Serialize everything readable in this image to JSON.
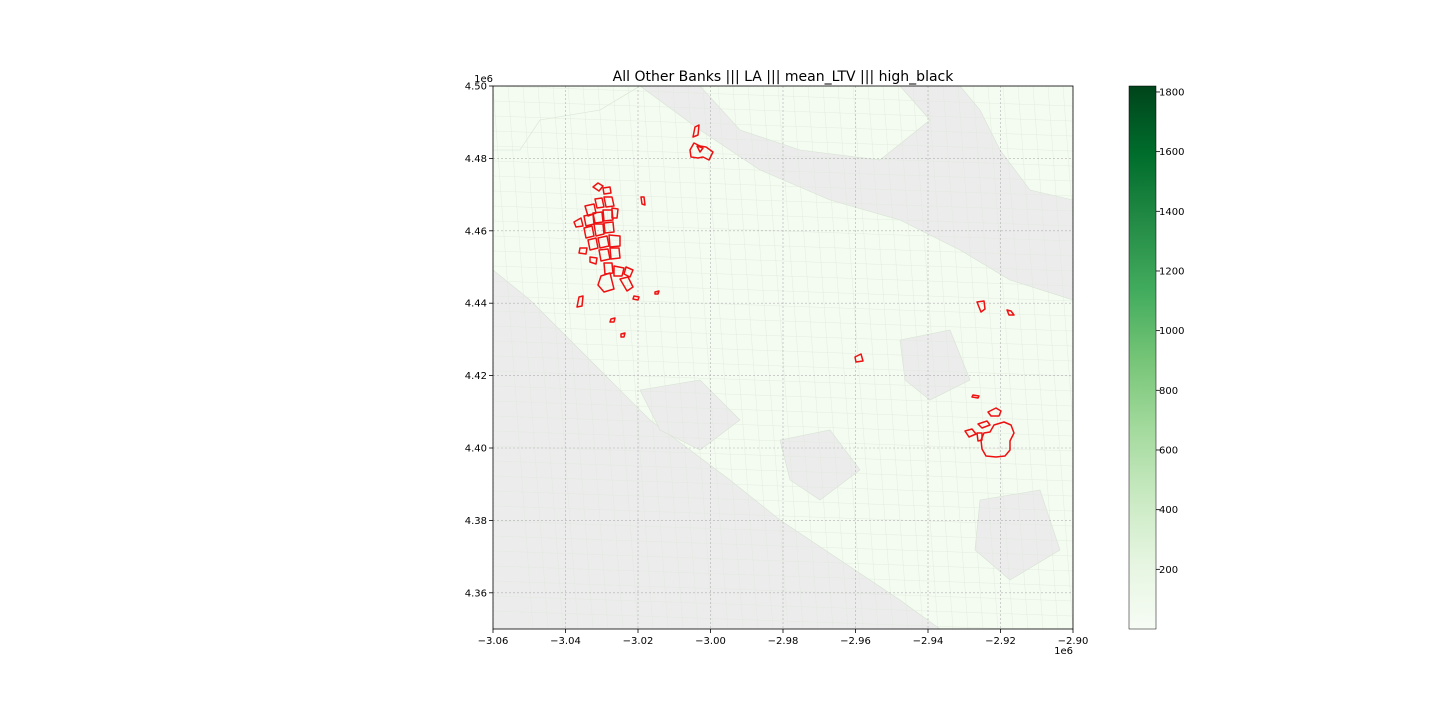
{
  "title": "All Other Banks ||| LA ||| mean_LTV ||| high_black",
  "map": {
    "x_range": [
      -3.06,
      -2.9
    ],
    "y_range": [
      4.35,
      4.5
    ],
    "x_ticks": [
      "−3.06",
      "−3.04",
      "−3.02",
      "−3.00",
      "−2.98",
      "−2.96",
      "−2.94",
      "−2.92",
      "−2.90"
    ],
    "y_ticks": [
      "4.36",
      "4.38",
      "4.40",
      "4.42",
      "4.44",
      "4.46",
      "4.48",
      "4.50"
    ],
    "x_offset_label": "1e6",
    "y_offset_label": "1e6",
    "grid": true,
    "background_color": "#ececec",
    "tract_fill_color": "#f4fbf1",
    "tract_edge_color": "#d6e3d2",
    "highlight_color": "#ee1111"
  },
  "colorbar": {
    "cmap": "Greens",
    "min": 0,
    "max": 1820,
    "ticks": [
      "200",
      "400",
      "600",
      "800",
      "1000",
      "1200",
      "1400",
      "1600",
      "1800"
    ],
    "color_low": "#f7fcf5",
    "color_high": "#00441b"
  }
}
